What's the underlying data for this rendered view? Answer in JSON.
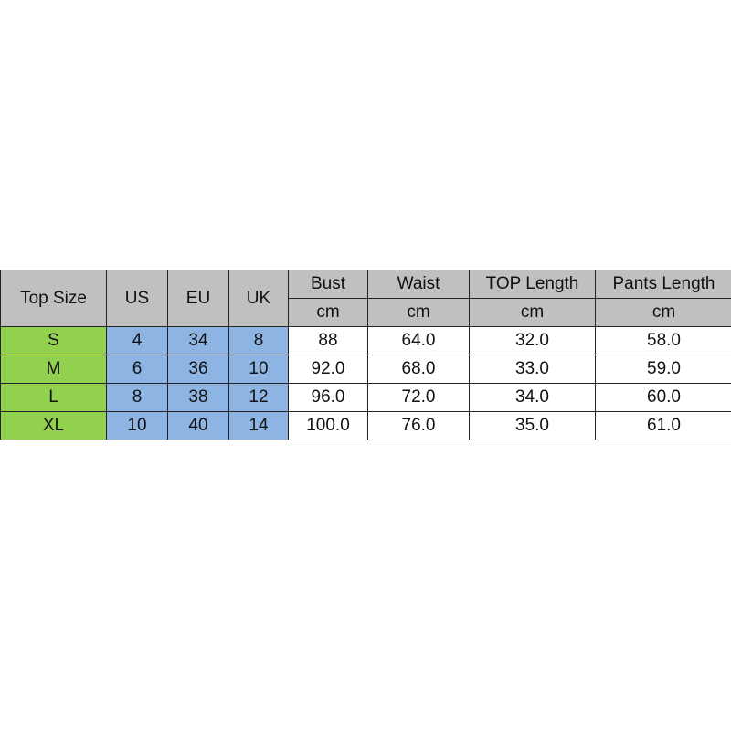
{
  "table": {
    "headers": [
      "Top Size",
      "US",
      "EU",
      "UK"
    ],
    "measure_headers": [
      {
        "label": "Bust",
        "unit": "cm"
      },
      {
        "label": "Waist",
        "unit": "cm"
      },
      {
        "label": "TOP Length",
        "unit": "cm"
      },
      {
        "label": "Pants Length",
        "unit": "cm"
      }
    ],
    "rows": [
      [
        "S",
        "4",
        "34",
        "8",
        "88",
        "64.0",
        "32.0",
        "58.0"
      ],
      [
        "M",
        "6",
        "36",
        "10",
        "92.0",
        "68.0",
        "33.0",
        "59.0"
      ],
      [
        "L",
        "8",
        "38",
        "12",
        "96.0",
        "72.0",
        "34.0",
        "60.0"
      ],
      [
        "XL",
        "10",
        "40",
        "14",
        "100.0",
        "76.0",
        "35.0",
        "61.0"
      ]
    ]
  },
  "colors": {
    "header": "#c0c0c0",
    "size": "#92d050",
    "region": "#8db4e2"
  }
}
